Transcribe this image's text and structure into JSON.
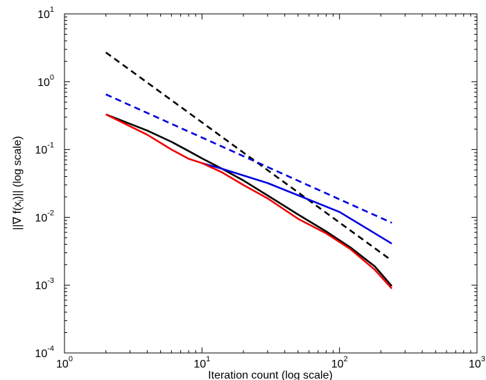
{
  "chart_data": {
    "type": "line",
    "xscale": "log",
    "yscale": "log",
    "xlim": [
      1,
      1000
    ],
    "ylim": [
      0.0001,
      10
    ],
    "grid": false,
    "xlabel": "Iteration count (log scale)",
    "ylabel_parts": [
      "||∇ f(x",
      "i",
      ")|| (log scale)"
    ],
    "x_ticks": [
      {
        "base": "10",
        "exp": "0"
      },
      {
        "base": "10",
        "exp": "1"
      },
      {
        "base": "10",
        "exp": "2"
      },
      {
        "base": "10",
        "exp": "3"
      }
    ],
    "y_ticks": [
      {
        "base": "10",
        "exp": "-4"
      },
      {
        "base": "10",
        "exp": "-3"
      },
      {
        "base": "10",
        "exp": "-2"
      },
      {
        "base": "10",
        "exp": "-1"
      },
      {
        "base": "10",
        "exp": "0"
      },
      {
        "base": "10",
        "exp": "1"
      }
    ],
    "series": [
      {
        "color": "#000000",
        "dash": true,
        "x": [
          2,
          240
        ],
        "y": [
          2.7,
          0.0023
        ]
      },
      {
        "color": "#0000dd",
        "dash": true,
        "x": [
          2,
          240
        ],
        "y": [
          0.65,
          0.0083
        ]
      },
      {
        "color": "#000000",
        "dash": false,
        "x": [
          2,
          4,
          6,
          8,
          10,
          14,
          20,
          30,
          50,
          80,
          120,
          180,
          240
        ],
        "y": [
          0.33,
          0.19,
          0.13,
          0.095,
          0.074,
          0.052,
          0.035,
          0.021,
          0.011,
          0.0062,
          0.0036,
          0.0019,
          0.00097
        ]
      },
      {
        "color": "#0000dd",
        "dash": false,
        "x": [
          10,
          14,
          30,
          100,
          240
        ],
        "y": [
          0.063,
          0.052,
          0.032,
          0.012,
          0.0041
        ]
      },
      {
        "color": "#ee0000",
        "dash": false,
        "x": [
          2,
          4,
          6,
          8,
          10,
          14,
          20,
          30,
          50,
          80,
          120,
          180,
          240
        ],
        "y": [
          0.33,
          0.165,
          0.1,
          0.073,
          0.063,
          0.046,
          0.03,
          0.019,
          0.0095,
          0.0058,
          0.0034,
          0.0017,
          0.00089
        ]
      }
    ]
  }
}
